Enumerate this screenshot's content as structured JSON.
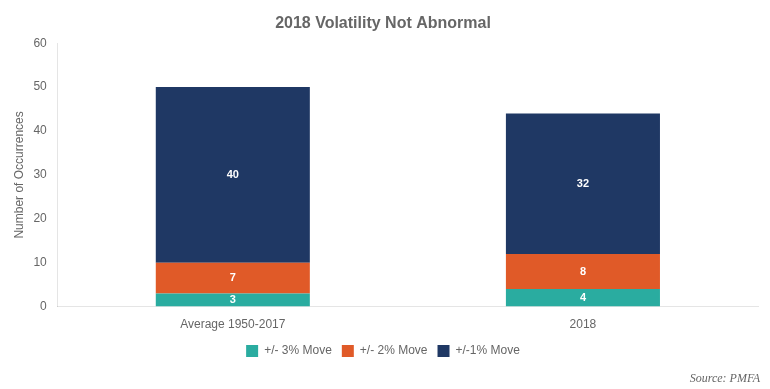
{
  "chart_data": {
    "type": "bar",
    "title": "2018 Volatility Not Abnormal",
    "categories": [
      "Average 1950-2017",
      "2018"
    ],
    "series": [
      {
        "name": "+/- 3% Move",
        "color": "#2aaca0",
        "values": [
          3,
          4
        ]
      },
      {
        "name": "+/- 2% Move",
        "color": "#e05a28",
        "values": [
          7,
          8
        ]
      },
      {
        "name": "+/-1% Move",
        "color": "#1f3864",
        "values": [
          40,
          32
        ]
      }
    ],
    "ylabel": "Number of Occurrences",
    "ylim": [
      0,
      60
    ],
    "yticks": [
      0,
      10,
      20,
      30,
      40,
      50,
      60
    ],
    "stacked": true,
    "data_labels": true,
    "grid": false,
    "legend": "bottom",
    "annotations": [
      "Source: PMFA"
    ]
  }
}
